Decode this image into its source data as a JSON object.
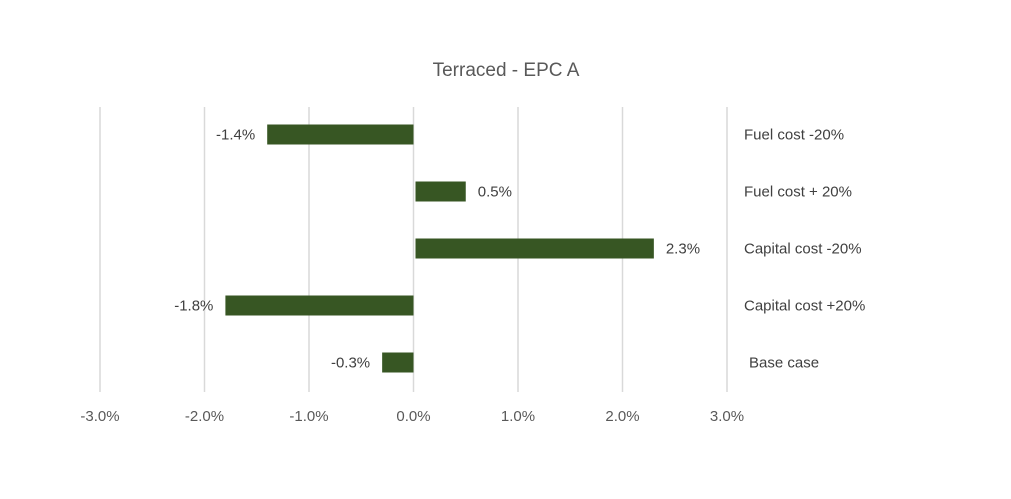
{
  "chart_data": {
    "type": "bar",
    "orientation": "horizontal",
    "title": "Terraced  - EPC A",
    "xlabel": "",
    "ylabel": "",
    "categories": [
      "Fuel cost -20%",
      "Fuel cost + 20%",
      "Capital cost -20%",
      "Capital cost +20%",
      "Base case"
    ],
    "values": [
      -1.4,
      0.5,
      2.3,
      -1.8,
      -0.3
    ],
    "data_labels": [
      "-1.4%",
      "0.5%",
      "2.3%",
      "-1.8%",
      "-0.3%"
    ],
    "xlim": [
      -3.0,
      3.0
    ],
    "x_ticks": [
      -3.0,
      -2.0,
      -1.0,
      0.0,
      1.0,
      2.0,
      3.0
    ],
    "x_tick_labels": [
      "-3.0%",
      "-2.0%",
      "-1.0%",
      "0.0%",
      "1.0%",
      "2.0%",
      "3.0%"
    ],
    "grid": "vertical",
    "legend": "none",
    "colors": {
      "bar": "#375623",
      "grid": "#d9d9d9",
      "text": "#595959"
    }
  }
}
